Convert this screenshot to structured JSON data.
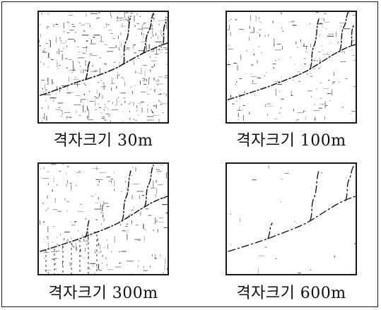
{
  "figure": {
    "panels": [
      {
        "caption": "격자크기 30m",
        "noise_level": "high"
      },
      {
        "caption": "격자크기 100m",
        "noise_level": "medium"
      },
      {
        "caption": "격자크기 300m",
        "noise_level": "medium"
      },
      {
        "caption": "격자크기 600m",
        "noise_level": "low"
      }
    ]
  },
  "colors": {
    "ink": "#1a1a1a",
    "background": "#ffffff"
  }
}
